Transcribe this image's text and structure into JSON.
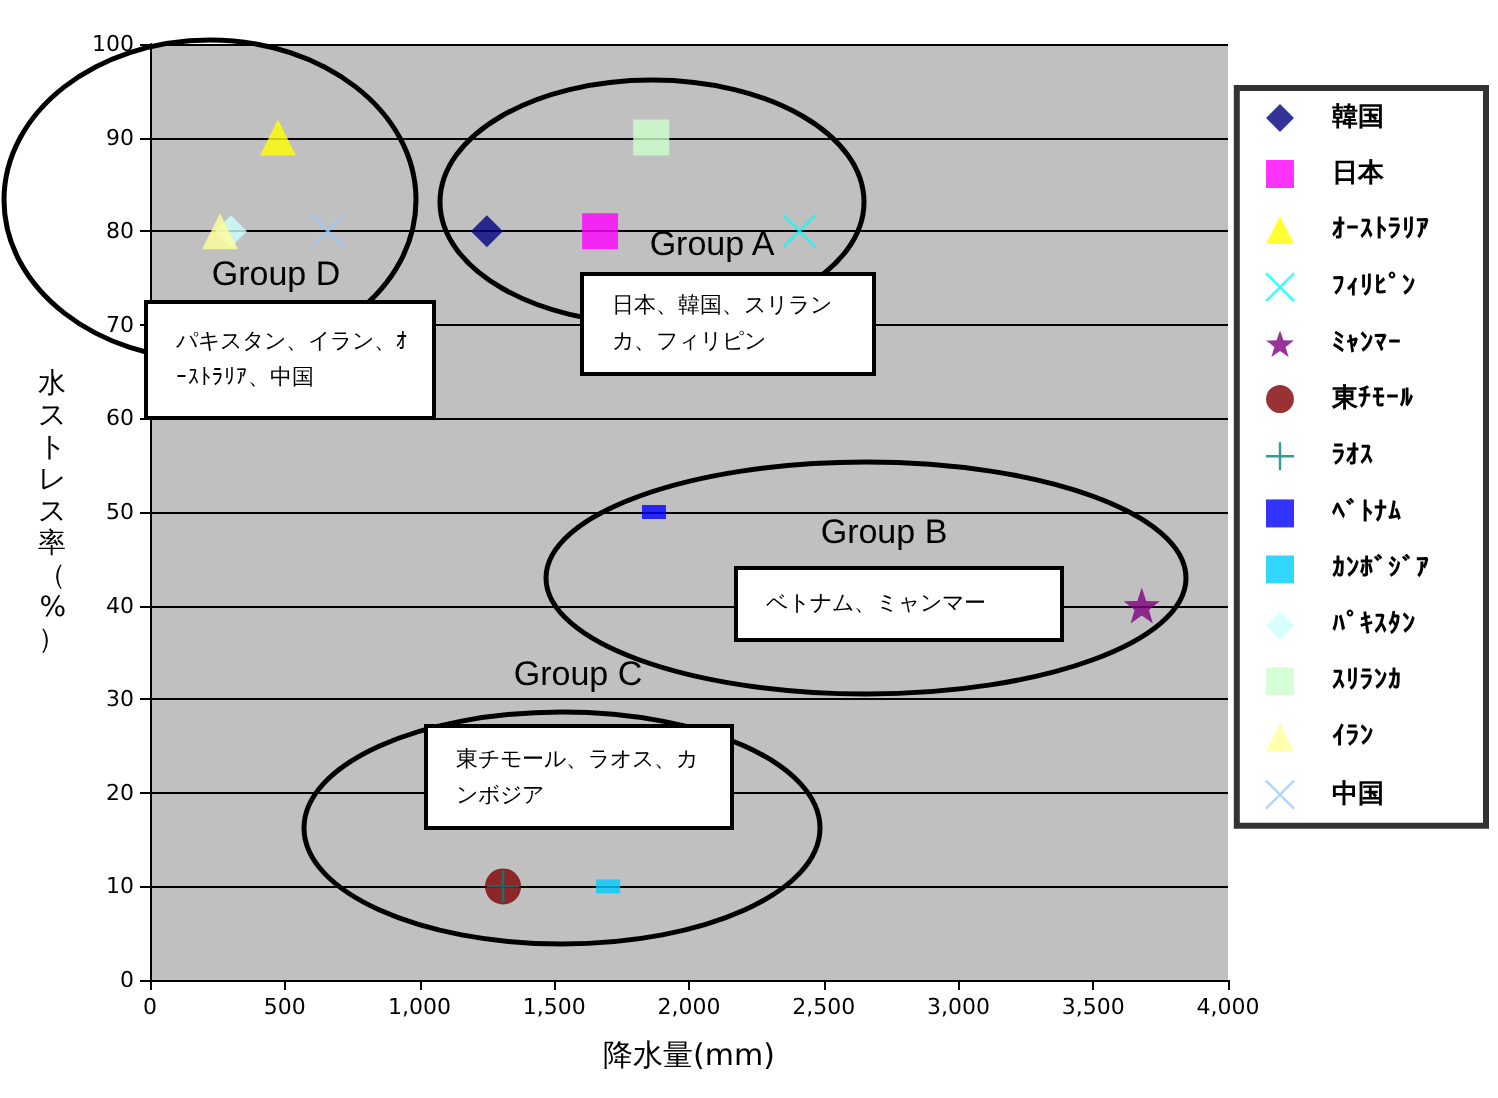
{
  "chart_data": {
    "type": "scatter",
    "xlabel": "降水量(mm)",
    "ylabel": "水ストレス率（%）",
    "xlim": [
      0,
      4000
    ],
    "xticks": [
      0,
      500,
      {
        "value": 1000,
        "label": "1,000"
      },
      {
        "value": 1500,
        "label": "1,500"
      },
      {
        "value": 2000,
        "label": "2,000"
      },
      {
        "value": 2500,
        "label": "2,500"
      },
      {
        "value": 3000,
        "label": "3,000"
      },
      {
        "value": 3500,
        "label": "3,500"
      },
      {
        "value": 4000,
        "label": "4,000"
      }
    ],
    "ylim": [
      0,
      100
    ],
    "yticks": [
      0,
      10,
      20,
      30,
      40,
      50,
      60,
      70,
      80,
      90,
      100
    ],
    "grid": "y",
    "legend": "right",
    "annotations": [
      "Group D",
      "パキスタン、イラン、ｵｰｽﾄﾗﾘｱ、中国",
      "Group A",
      "日本、韓国、スリランカ、フィリピン",
      "Group B",
      "ベトナム、ミャンマー",
      "Group C",
      "東チモール、ラオス、カンボジア"
    ],
    "series": [
      {
        "name": "韓国",
        "color": "#000080",
        "marker": "diamond",
        "x": [
          1250
        ],
        "values": [
          80
        ]
      },
      {
        "name": "日本",
        "color": "#ff00ff",
        "marker": "square",
        "x": [
          1670
        ],
        "values": [
          80
        ]
      },
      {
        "name": "ｵｰｽﾄﾗﾘｱ",
        "color": "#ffff00",
        "marker": "triangle",
        "x": [
          475
        ],
        "values": [
          90
        ]
      },
      {
        "name": "ﾌｨﾘﾋﾟﾝ",
        "color": "#00ffff",
        "marker": "cross",
        "x": [
          2410
        ],
        "values": [
          80
        ]
      },
      {
        "name": "ﾐｬﾝﾏｰ",
        "color": "#800080",
        "marker": "star",
        "x": [
          3680
        ],
        "values": [
          40
        ]
      },
      {
        "name": "東ﾁﾓｰﾙ",
        "color": "#800000",
        "marker": "circle",
        "x": [
          1310
        ],
        "values": [
          10
        ]
      },
      {
        "name": "ﾗｵｽ",
        "color": "#008080",
        "marker": "plus",
        "x": [
          1310
        ],
        "values": [
          10
        ]
      },
      {
        "name": "ﾍﾞﾄﾅﾑ",
        "color": "#0000ff",
        "x": [
          1870
        ],
        "values": [
          50
        ]
      },
      {
        "name": "ｶﾝﾎﾞｼﾞｱ",
        "color": "#00ccff",
        "x": [
          1700
        ],
        "values": [
          10
        ]
      },
      {
        "name": "ﾊﾟｷｽﾀﾝ",
        "color": "#ccffff",
        "marker": "diamond",
        "x": [
          300
        ],
        "values": [
          80
        ]
      },
      {
        "name": "ｽﾘﾗﾝｶ",
        "color": "#ccffcc",
        "marker": "square",
        "x": [
          1860
        ],
        "values": [
          90
        ]
      },
      {
        "name": "ｲﾗﾝ",
        "color": "#ffff99",
        "marker": "triangle",
        "x": [
          260
        ],
        "values": [
          80
        ]
      },
      {
        "name": "中国",
        "color": "#99ccff",
        "marker": "cross",
        "x": [
          660
        ],
        "values": [
          80
        ]
      }
    ]
  }
}
